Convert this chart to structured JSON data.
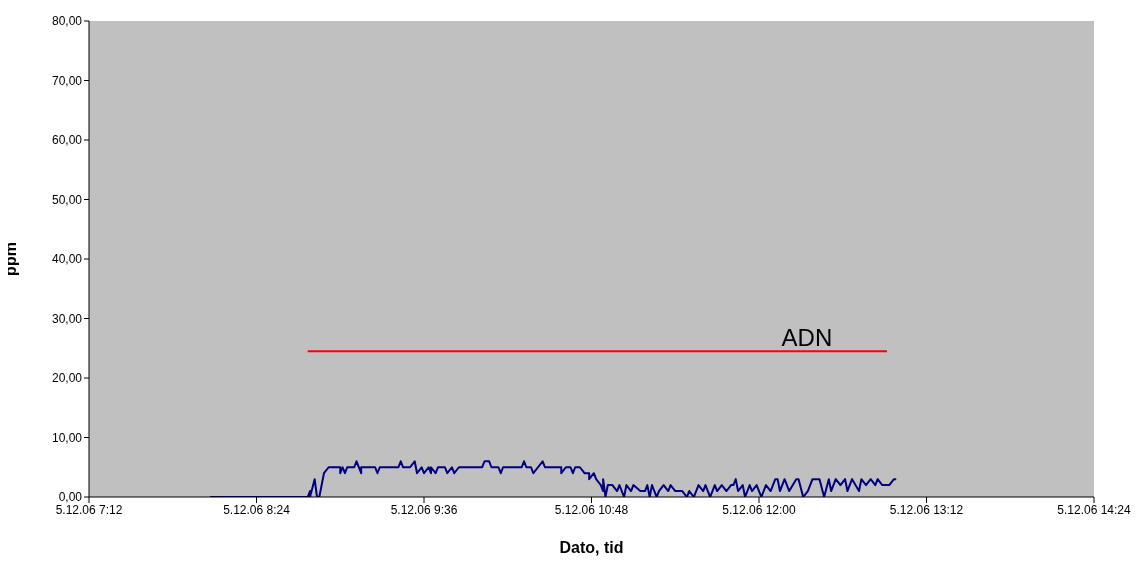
{
  "chart_data": {
    "type": "line",
    "xlabel": "Dato, tid",
    "ylabel": "ppm",
    "xlim": [
      "--12-05T07:12",
      "--12-05T14:24"
    ],
    "xticks": [
      {
        "value": "--12-05T07:12",
        "label": "5.12.06 7:12"
      },
      {
        "value": "--12-05T08:24",
        "label": "5.12.06 8:24"
      },
      {
        "value": "--12-05T09:36",
        "label": "5.12.06 9:36"
      },
      {
        "value": "--12-05T10:48",
        "label": "5.12.06 10:48"
      },
      {
        "value": "--12-05T12:00",
        "label": "5.12.06 12:00"
      },
      {
        "value": "--12-05T13:12",
        "label": "5.12.06 13:12"
      },
      {
        "value": "--12-05T14:24",
        "label": "5.12.06 14:24"
      }
    ],
    "ylim": [
      0,
      80
    ],
    "yticks": [
      {
        "value": 0,
        "label": "0,00"
      },
      {
        "value": 10,
        "label": "10,00"
      },
      {
        "value": 20,
        "label": "20,00"
      },
      {
        "value": 30,
        "label": "30,00"
      },
      {
        "value": 40,
        "label": "40,00"
      },
      {
        "value": 50,
        "label": "50,00"
      },
      {
        "value": 60,
        "label": "60,00"
      },
      {
        "value": 70,
        "label": "70,00"
      },
      {
        "value": 80,
        "label": "80,00"
      }
    ],
    "legend": false,
    "series": [
      {
        "color": "#000080",
        "x": [
          "--12-05T08:04",
          "--12-05T08:46",
          "--12-05T08:47",
          "--12-05T08:47",
          "--12-05T08:49",
          "--12-05T08:50",
          "--12-05T08:51",
          "--12-05T08:53",
          "--12-05T08:55",
          "--12-05T09:00",
          "--12-05T09:00",
          "--12-05T09:01",
          "--12-05T09:02",
          "--12-05T09:03",
          "--12-05T09:06",
          "--12-05T09:07",
          "--12-05T09:08",
          "--12-05T09:09",
          "--12-05T09:09",
          "--12-05T09:15",
          "--12-05T09:16",
          "--12-05T09:17",
          "--12-05T09:25",
          "--12-05T09:26",
          "--12-05T09:27",
          "--12-05T09:30",
          "--12-05T09:32",
          "--12-05T09:33",
          "--12-05T09:35",
          "--12-05T09:36",
          "--12-05T09:38",
          "--12-05T09:39",
          "--12-05T09:39",
          "--12-05T09:41",
          "--12-05T09:42",
          "--12-05T09:45",
          "--12-05T09:46",
          "--12-05T09:48",
          "--12-05T09:49",
          "--12-05T09:51",
          "--12-05T10:01",
          "--12-05T10:02",
          "--12-05T10:04",
          "--12-05T10:05",
          "--12-05T10:08",
          "--12-05T10:09",
          "--12-05T10:10",
          "--12-05T10:18",
          "--12-05T10:19",
          "--12-05T10:20",
          "--12-05T10:22",
          "--12-05T10:23",
          "--12-05T10:25",
          "--12-05T10:27",
          "--12-05T10:28",
          "--12-05T10:35",
          "--12-05T10:35",
          "--12-05T10:37",
          "--12-05T10:39",
          "--12-05T10:40",
          "--12-05T10:41",
          "--12-05T10:43",
          "--12-05T10:45",
          "--12-05T10:47",
          "--12-05T10:47",
          "--12-05T10:49",
          "--12-05T10:50",
          "--12-05T10:52",
          "--12-05T10:53",
          "--12-05T10:53",
          "--12-05T10:54",
          "--12-05T10:55",
          "--12-05T10:57",
          "--12-05T10:59",
          "--12-05T11:00",
          "--12-05T11:02",
          "--12-05T11:03",
          "--12-05T11:05",
          "--12-05T11:06",
          "--12-05T11:09",
          "--12-05T11:11",
          "--12-05T11:12",
          "--12-05T11:13",
          "--12-05T11:14",
          "--12-05T11:16",
          "--12-05T11:17",
          "--12-05T11:19",
          "--12-05T11:21",
          "--12-05T11:22",
          "--12-05T11:24",
          "--12-05T11:27",
          "--12-05T11:29",
          "--12-05T11:30",
          "--12-05T11:32",
          "--12-05T11:34",
          "--12-05T11:36",
          "--12-05T11:37",
          "--12-05T11:39",
          "--12-05T11:41",
          "--12-05T11:42",
          "--12-05T11:44",
          "--12-05T11:46",
          "--12-05T11:48",
          "--12-05T11:49",
          "--12-05T11:50",
          "--12-05T11:51",
          "--12-05T11:53",
          "--12-05T11:54",
          "--12-05T11:56",
          "--12-05T11:57",
          "--12-05T11:59",
          "--12-05T12:01",
          "--12-05T12:03",
          "--12-05T12:05",
          "--12-05T12:07",
          "--12-05T12:08",
          "--12-05T12:09",
          "--12-05T12:11",
          "--12-05T12:13",
          "--12-05T12:16",
          "--12-05T12:17",
          "--12-05T12:19",
          "--12-05T12:21",
          "--12-05T12:23",
          "--12-05T12:26",
          "--12-05T12:28",
          "--12-05T12:30",
          "--12-05T12:31",
          "--12-05T12:33",
          "--12-05T12:35",
          "--12-05T12:37",
          "--12-05T12:38",
          "--12-05T12:40",
          "--12-05T12:43",
          "--12-05T12:44",
          "--12-05T12:46",
          "--12-05T12:48",
          "--12-05T12:50",
          "--12-05T12:51",
          "--12-05T12:53",
          "--12-05T12:55",
          "--12-05T12:56",
          "--12-05T12:58",
          "--12-05T12:59"
        ],
        "values": [
          0,
          0,
          1,
          0,
          3,
          0,
          0,
          4,
          5,
          5,
          4,
          5,
          4,
          5,
          5,
          6,
          5,
          4,
          5,
          5,
          4,
          5,
          5,
          6,
          5,
          5,
          6,
          4,
          5,
          4,
          5,
          4,
          5,
          4,
          5,
          5,
          4,
          5,
          4,
          5,
          5,
          6,
          6,
          5,
          5,
          4,
          5,
          5,
          6,
          5,
          5,
          4,
          5,
          6,
          5,
          5,
          4,
          5,
          5,
          4,
          5,
          5,
          4,
          4,
          3,
          4,
          3,
          2,
          1,
          3,
          0,
          2,
          2,
          1,
          2,
          0,
          2,
          1,
          2,
          1,
          1,
          2,
          0,
          2,
          0,
          1,
          2,
          1,
          2,
          1,
          1,
          0,
          1,
          0,
          2,
          1,
          2,
          0,
          2,
          1,
          2,
          1,
          2,
          2,
          3,
          1,
          2,
          0,
          2,
          1,
          2,
          0,
          2,
          1,
          3,
          3,
          1,
          3,
          1,
          3,
          3,
          0,
          1,
          3,
          3,
          0,
          3,
          1,
          3,
          2,
          3,
          1,
          3,
          1,
          3,
          2,
          3,
          2,
          3,
          2,
          2,
          2,
          3,
          3
        ]
      },
      {
        "name": "ADN",
        "color": "#ff0000",
        "x": [
          "--12-05T08:46",
          "--12-05T12:55"
        ],
        "values": [
          24.5,
          24.5
        ]
      }
    ]
  }
}
